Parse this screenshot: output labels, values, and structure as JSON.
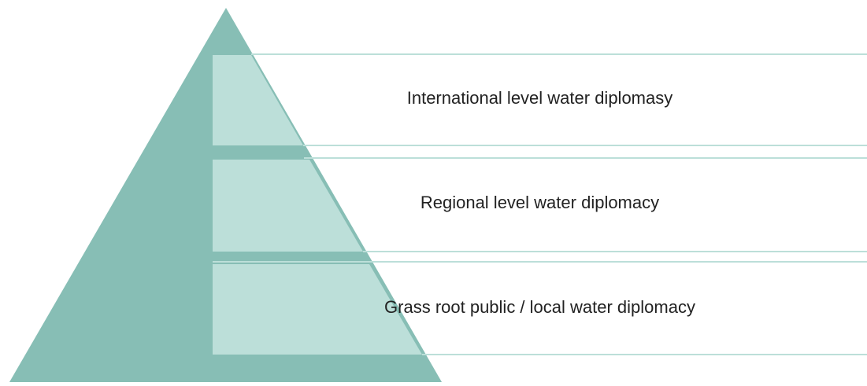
{
  "diagram": {
    "levels": [
      {
        "label": "International level water diplomasy"
      },
      {
        "label": "Regional level water diplomacy"
      },
      {
        "label": "Grass root public / local water diplomacy"
      }
    ]
  },
  "colors": {
    "pyramid": "#87beb5",
    "band_fill": "#bcdfd9",
    "rule_line": "#bcdfd9",
    "text": "#222222",
    "background": "#ffffff"
  }
}
